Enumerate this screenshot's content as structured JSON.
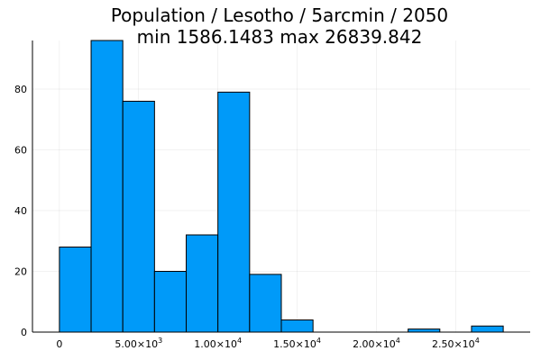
{
  "chart_data": {
    "type": "bar",
    "title": [
      "Population / Lesotho / 5arcmin / 2050",
      "min 1586.1483  max 26839.842"
    ],
    "xlabel": "",
    "ylabel": "",
    "bin_width": 2000,
    "bins": [
      {
        "start": 0,
        "end": 2000,
        "count": 28
      },
      {
        "start": 2000,
        "end": 4000,
        "count": 96
      },
      {
        "start": 4000,
        "end": 6000,
        "count": 76
      },
      {
        "start": 6000,
        "end": 8000,
        "count": 20
      },
      {
        "start": 8000,
        "end": 10000,
        "count": 32
      },
      {
        "start": 10000,
        "end": 12000,
        "count": 79
      },
      {
        "start": 12000,
        "end": 14000,
        "count": 19
      },
      {
        "start": 14000,
        "end": 16000,
        "count": 4
      },
      {
        "start": 16000,
        "end": 18000,
        "count": 0
      },
      {
        "start": 18000,
        "end": 20000,
        "count": 0
      },
      {
        "start": 20000,
        "end": 22000,
        "count": 0
      },
      {
        "start": 22000,
        "end": 24000,
        "count": 1
      },
      {
        "start": 24000,
        "end": 26000,
        "count": 0
      },
      {
        "start": 26000,
        "end": 28000,
        "count": 2
      }
    ],
    "xlim": [
      -1700,
      29700
    ],
    "ylim": [
      0,
      96
    ],
    "x_ticks": [
      {
        "value": 0,
        "mantissa": "0",
        "exponent": ""
      },
      {
        "value": 5000,
        "mantissa": "5.00×10",
        "exponent": "3"
      },
      {
        "value": 10000,
        "mantissa": "1.00×10",
        "exponent": "4"
      },
      {
        "value": 15000,
        "mantissa": "1.50×10",
        "exponent": "4"
      },
      {
        "value": 20000,
        "mantissa": "2.00×10",
        "exponent": "4"
      },
      {
        "value": 25000,
        "mantissa": "2.50×10",
        "exponent": "4"
      }
    ],
    "y_ticks": [
      {
        "value": 0,
        "label": "0"
      },
      {
        "value": 20,
        "label": "20"
      },
      {
        "value": 40,
        "label": "40"
      },
      {
        "value": 60,
        "label": "60"
      },
      {
        "value": 80,
        "label": "80"
      }
    ],
    "grid": true,
    "legend": "none",
    "bar_color": "#009AF9",
    "bar_edge_color": "#000000"
  }
}
